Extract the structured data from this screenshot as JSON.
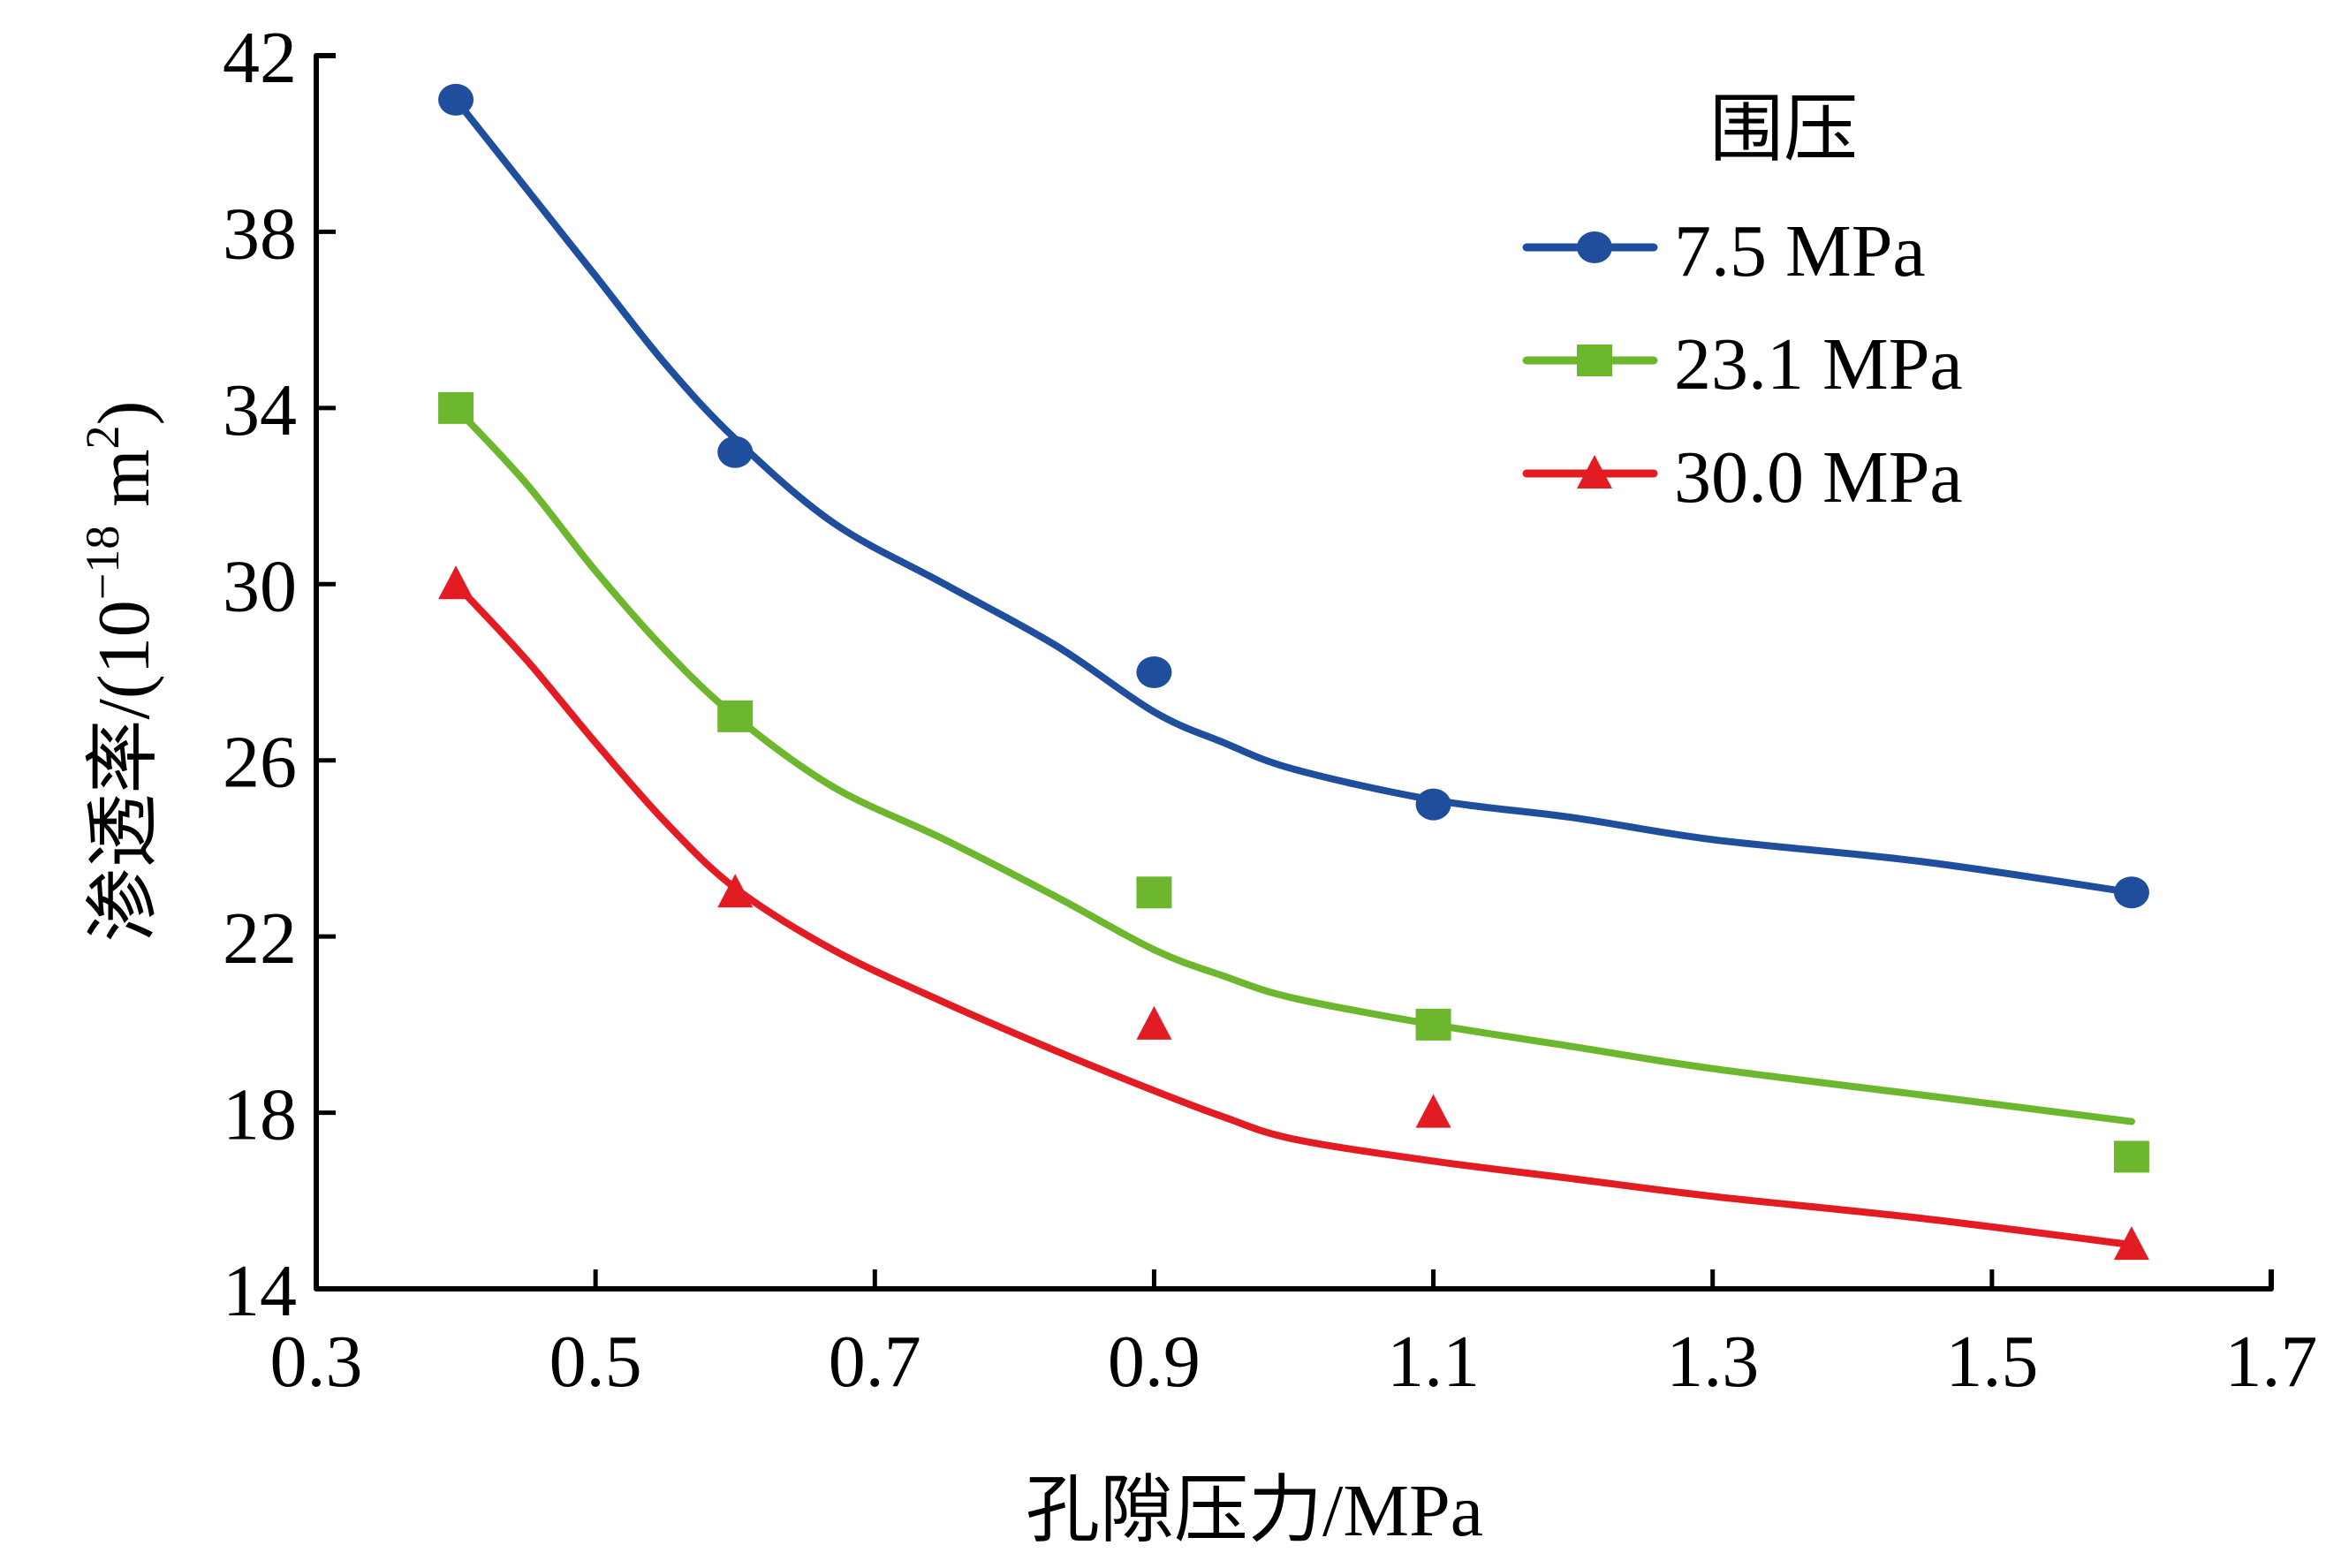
{
  "chart_data": {
    "type": "scatter",
    "title": "",
    "xlabel": "孔隙压力/MPa",
    "ylabel_main": "渗透率/(10",
    "ylabel_exp": "−18",
    "ylabel_unit": " m",
    "ylabel_unit_exp": "2",
    "ylabel_close": ")",
    "ylabel": "渗透率/(10^-18 m^2)",
    "xlim": [
      0.3,
      1.7
    ],
    "ylim": [
      14,
      42
    ],
    "xticks": [
      "0.3",
      "0.5",
      "0.7",
      "0.9",
      "1.1",
      "1.3",
      "1.5",
      "1.7"
    ],
    "yticks": [
      "14",
      "18",
      "22",
      "26",
      "30",
      "34",
      "38",
      "42"
    ],
    "grid": false,
    "legend": {
      "title": "围压",
      "placement": "top-right"
    },
    "x": [
      0.4,
      0.6,
      0.9,
      1.1,
      1.6
    ],
    "series": [
      {
        "name": "7.5 MPa",
        "color": "#1f4e9c",
        "marker": "circle",
        "values": [
          41,
          33,
          28,
          25,
          23
        ],
        "fit_curve": {
          "x": [
            0.4,
            0.45,
            0.5,
            0.55,
            0.6,
            0.67,
            0.75,
            0.83,
            0.9,
            0.95,
            1.0,
            1.1,
            1.2,
            1.3,
            1.45,
            1.6
          ],
          "y": [
            41,
            39,
            37,
            35,
            33.3,
            31.4,
            30,
            28.6,
            27.1,
            26.4,
            25.8,
            25.1,
            24.7,
            24.2,
            23.7,
            23.0
          ]
        }
      },
      {
        "name": "23.1 MPa",
        "color": "#6db72f",
        "marker": "square",
        "values": [
          34,
          27,
          23,
          20,
          17
        ],
        "fit_curve": {
          "x": [
            0.4,
            0.45,
            0.5,
            0.55,
            0.6,
            0.67,
            0.75,
            0.83,
            0.9,
            0.95,
            1.0,
            1.1,
            1.2,
            1.3,
            1.45,
            1.6
          ],
          "y": [
            34,
            32.3,
            30.3,
            28.5,
            27.0,
            25.4,
            24.2,
            22.9,
            21.7,
            21.1,
            20.6,
            20.0,
            19.5,
            19.0,
            18.4,
            17.8
          ]
        }
      },
      {
        "name": "30.0 MPa",
        "color": "#e31b23",
        "marker": "triangle",
        "values": [
          30,
          23,
          20,
          18,
          15
        ],
        "fit_curve": {
          "x": [
            0.4,
            0.45,
            0.5,
            0.55,
            0.6,
            0.67,
            0.75,
            0.83,
            0.9,
            0.95,
            1.0,
            1.1,
            1.2,
            1.3,
            1.45,
            1.6
          ],
          "y": [
            30,
            28.3,
            26.4,
            24.6,
            23.1,
            21.7,
            20.5,
            19.4,
            18.5,
            17.9,
            17.4,
            16.9,
            16.5,
            16.1,
            15.6,
            15.0
          ]
        }
      }
    ]
  }
}
